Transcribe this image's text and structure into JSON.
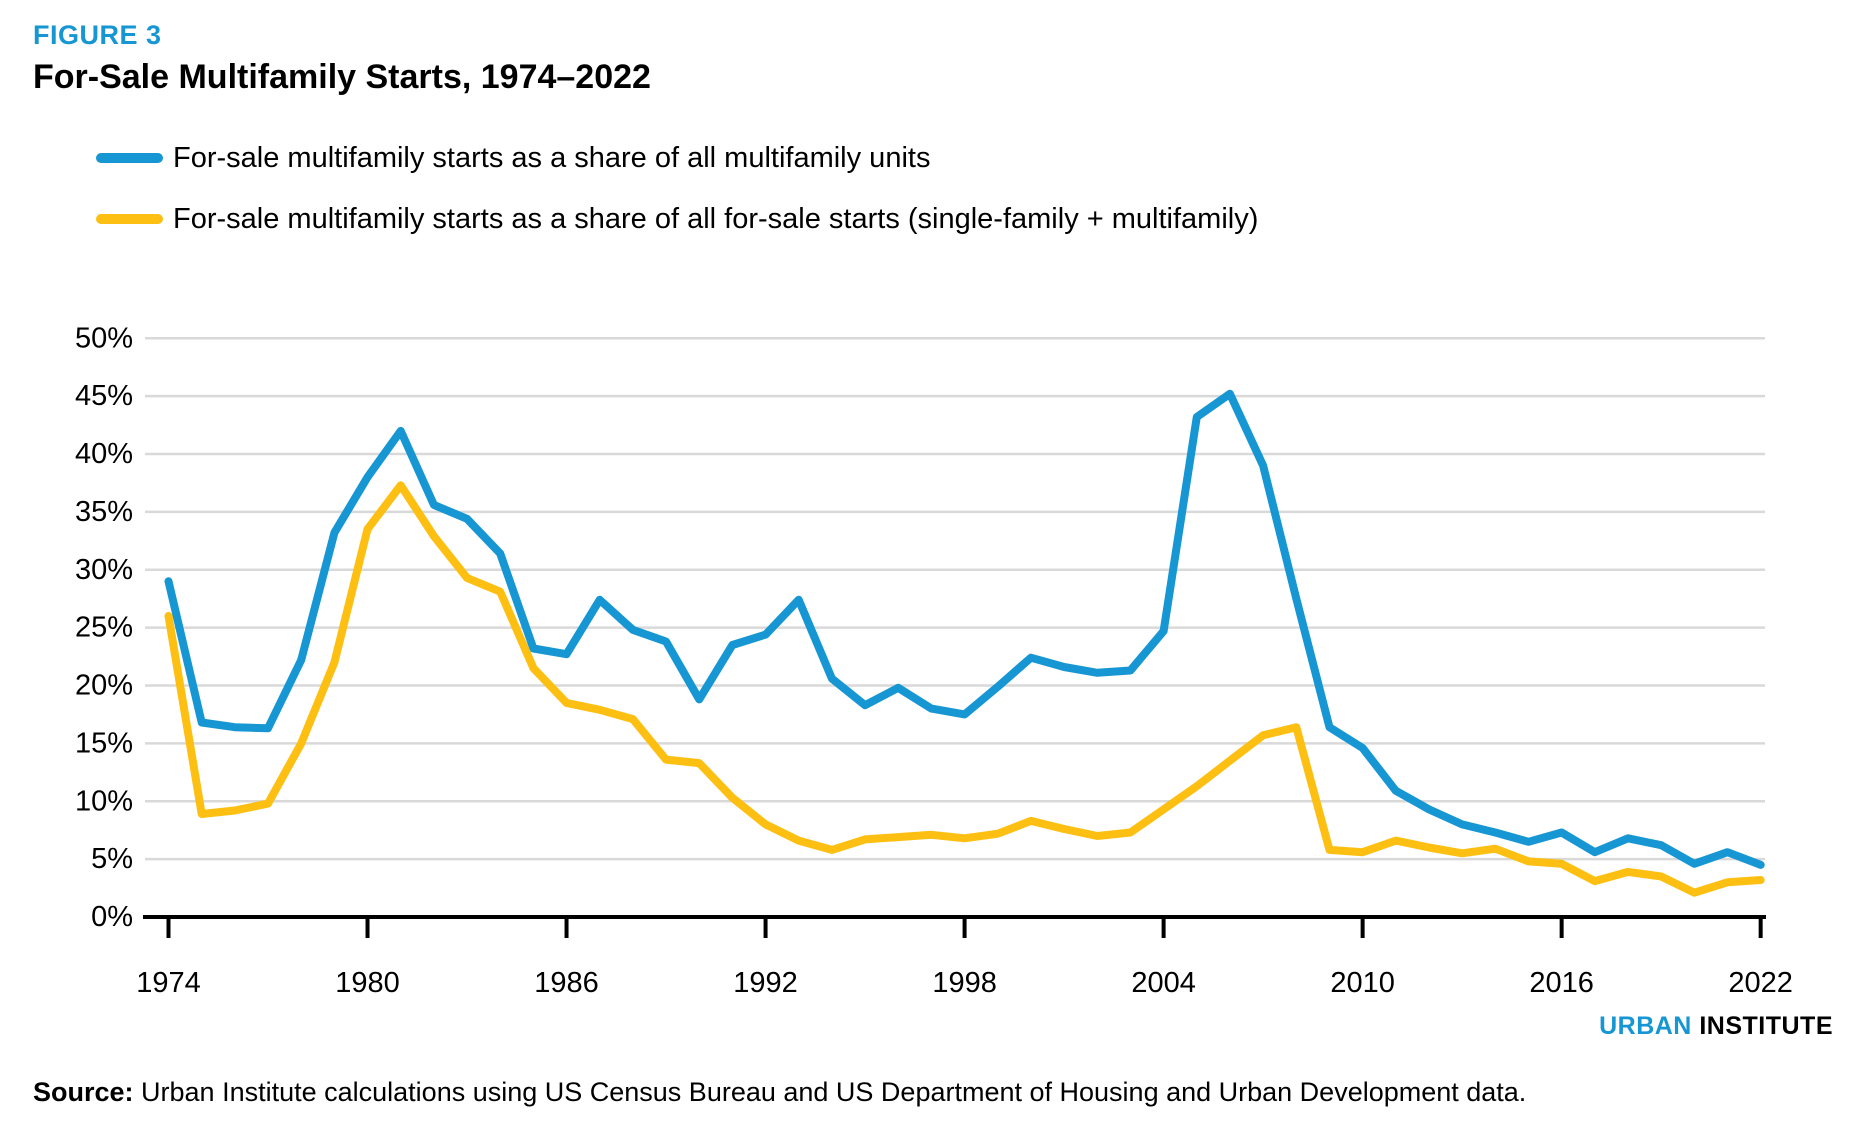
{
  "figure_label": "FIGURE 3",
  "title": "For-Sale Multifamily Starts, 1974–2022",
  "legend": [
    {
      "label": "For-sale multifamily starts as a share of all multifamily units",
      "color": "#1696d2"
    },
    {
      "label": "For-sale multifamily starts as a share of all for-sale starts (single-family + multifamily)",
      "color": "#fdbf11"
    }
  ],
  "footer": {
    "logo_urban": "URBAN",
    "logo_institute": "INSTITUTE",
    "source_label": "Source:",
    "source_text": " Urban Institute calculations using US Census Bureau and US Department of Housing and Urban Development data."
  },
  "colors": {
    "accent_blue": "#1696d2",
    "accent_yellow": "#fdbf11",
    "gridline": "#d9d9d9",
    "axis": "#000000",
    "text": "#000000"
  },
  "chart_data": {
    "type": "line",
    "title": "For-Sale Multifamily Starts, 1974–2022",
    "xlabel": "",
    "ylabel": "",
    "ylim": [
      0,
      50
    ],
    "grid": true,
    "legend_position": "top-left",
    "y_ticks": [
      0,
      5,
      10,
      15,
      20,
      25,
      30,
      35,
      40,
      45,
      50
    ],
    "y_tick_suffix": "%",
    "x_ticks": [
      1974,
      1980,
      1986,
      1992,
      1998,
      2004,
      2010,
      2016,
      2022
    ],
    "x": [
      1974,
      1975,
      1976,
      1977,
      1978,
      1979,
      1980,
      1981,
      1982,
      1983,
      1984,
      1985,
      1986,
      1987,
      1988,
      1989,
      1990,
      1991,
      1992,
      1993,
      1994,
      1995,
      1996,
      1997,
      1998,
      1999,
      2000,
      2001,
      2002,
      2003,
      2004,
      2005,
      2006,
      2007,
      2008,
      2009,
      2010,
      2011,
      2012,
      2013,
      2014,
      2015,
      2016,
      2017,
      2018,
      2019,
      2020,
      2021,
      2022
    ],
    "series": [
      {
        "name": "For-sale multifamily starts as a share of all multifamily units",
        "color": "#1696d2",
        "values": [
          29.0,
          16.8,
          16.4,
          16.3,
          22.2,
          33.2,
          38.0,
          42.0,
          35.6,
          34.4,
          31.4,
          23.2,
          22.7,
          27.4,
          24.8,
          23.8,
          18.8,
          23.5,
          24.4,
          27.4,
          20.6,
          18.3,
          19.8,
          18.0,
          17.5,
          19.9,
          22.4,
          21.6,
          21.1,
          21.3,
          24.7,
          43.2,
          45.2,
          39.0,
          27.5,
          16.4,
          14.6,
          10.9,
          9.3,
          8.0,
          7.3,
          6.5,
          7.3,
          5.6,
          6.8,
          6.2,
          4.6,
          5.6,
          4.5
        ]
      },
      {
        "name": "For-sale multifamily starts as a share of all for-sale starts (single-family + multifamily)",
        "color": "#fdbf11",
        "values": [
          26.0,
          8.9,
          9.2,
          9.8,
          15.0,
          22.0,
          33.5,
          37.3,
          32.9,
          29.3,
          28.1,
          21.5,
          18.5,
          17.9,
          17.1,
          13.6,
          13.3,
          10.3,
          8.0,
          6.6,
          5.8,
          6.7,
          6.9,
          7.1,
          6.8,
          7.2,
          8.3,
          7.6,
          7.0,
          7.3,
          9.3,
          11.3,
          13.5,
          15.7,
          16.4,
          5.8,
          5.6,
          6.6,
          6.0,
          5.5,
          5.9,
          4.8,
          4.6,
          3.1,
          3.9,
          3.5,
          2.1,
          3.0,
          3.2
        ]
      }
    ]
  }
}
